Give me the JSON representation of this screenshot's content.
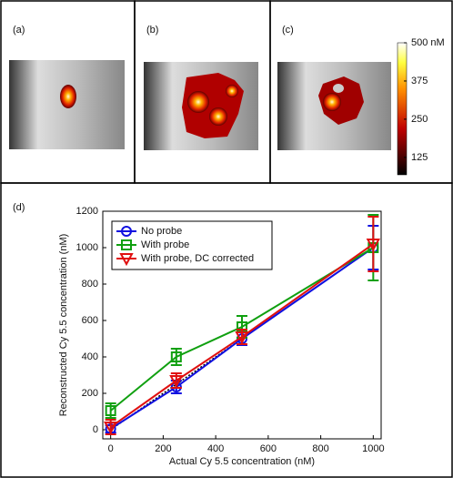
{
  "chart_data": [
    {
      "type": "image-panels",
      "panels": [
        {
          "label": "(a)"
        },
        {
          "label": "(b)"
        },
        {
          "label": "(c)"
        }
      ],
      "colorbar": {
        "clim": [
          68,
          500
        ],
        "ticks": [
          125,
          250,
          375,
          {
            "value": 500,
            "label": "500 nM"
          }
        ]
      }
    },
    {
      "type": "line",
      "panel_label": "(d)",
      "xlabel": "Actual Cy 5.5 concentration (nM)",
      "ylabel": "Reconstructed Cy 5.5 concentration (nM)",
      "x": [
        0,
        250,
        500,
        1000
      ],
      "xlim": [
        -30,
        1030
      ],
      "xticks": [
        0,
        200,
        400,
        600,
        800,
        1000
      ],
      "ylim": [
        -50,
        1200
      ],
      "yticks": [
        0,
        200,
        400,
        600,
        800,
        1000,
        1200
      ],
      "identity_line": true,
      "legend": "upper left",
      "series": [
        {
          "name": "No probe",
          "color": "#1010e0",
          "marker": "circle",
          "values": [
            5,
            235,
            500,
            1000
          ],
          "errors": [
            20,
            35,
            35,
            120
          ]
        },
        {
          "name": "With probe",
          "color": "#10a010",
          "marker": "square",
          "values": [
            105,
            400,
            565,
            1000
          ],
          "errors": [
            40,
            45,
            60,
            180
          ]
        },
        {
          "name": "With probe, DC corrected",
          "color": "#e01010",
          "marker": "triangle-down",
          "values": [
            15,
            270,
            510,
            1020
          ],
          "errors": [
            40,
            40,
            40,
            150
          ]
        }
      ]
    }
  ]
}
